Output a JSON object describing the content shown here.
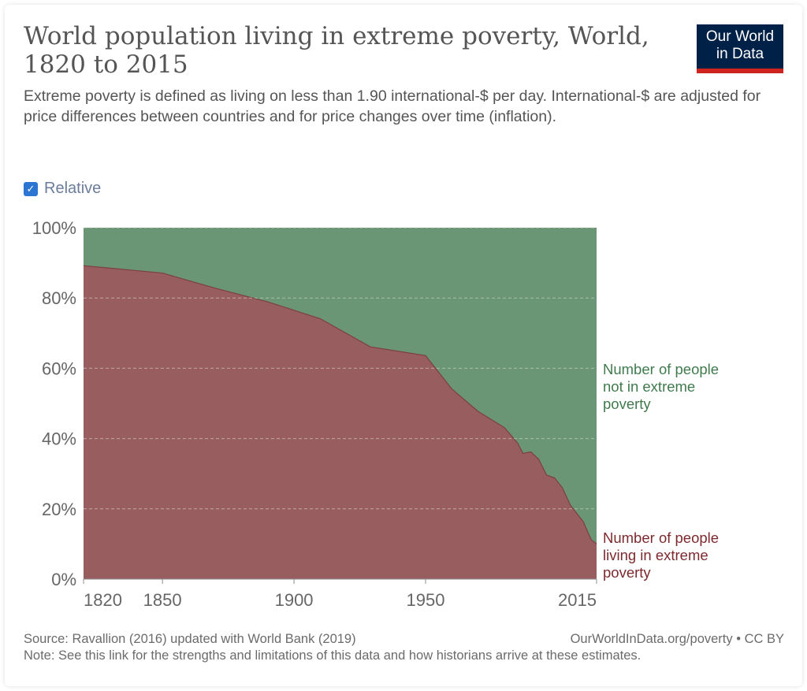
{
  "title": "World population living in extreme poverty, World, 1820 to 2015",
  "subtitle": "Extreme poverty is defined as living on less than 1.90 international-$ per day. International-$ are adjusted for price differences between countries and for price changes over time (inflation).",
  "logo": {
    "line1": "Our World",
    "line2": "in Data",
    "bg_color": "#002147",
    "accent_color": "#ce261e"
  },
  "relative_toggle": {
    "label": "Relative",
    "checked": true
  },
  "footer": {
    "source": "Source: Ravallion (2016) updated with World Bank (2019)",
    "link": "OurWorldInData.org/poverty • CC BY",
    "note": "Note: See this link for the strengths and limitations of this data and how historians arrive at these estimates."
  },
  "chart_data": {
    "type": "area",
    "stacked": true,
    "relative": true,
    "x": [
      1820,
      1850,
      1870,
      1890,
      1910,
      1929,
      1950,
      1960,
      1970,
      1980,
      1985,
      1987,
      1990,
      1993,
      1996,
      1999,
      2002,
      2005,
      2008,
      2010,
      2012,
      2013,
      2015
    ],
    "series": [
      {
        "name": "Number of people living in extreme poverty",
        "label_lines": [
          "Number of people",
          "living in extreme",
          "poverty"
        ],
        "color": "#985e5f",
        "values": [
          89.2,
          87.1,
          82.8,
          78.9,
          74.1,
          66.1,
          63.6,
          54.1,
          47.7,
          43.1,
          38.7,
          35.8,
          36.2,
          34.1,
          29.6,
          28.8,
          26.0,
          21.1,
          18.2,
          16.3,
          12.8,
          11.2,
          10.0
        ]
      },
      {
        "name": "Number of people not in extreme poverty",
        "label_lines": [
          "Number of people",
          "not in extreme",
          "poverty"
        ],
        "color": "#6a9676",
        "values": [
          10.8,
          12.9,
          17.2,
          21.1,
          25.9,
          33.9,
          36.4,
          45.9,
          52.3,
          56.9,
          61.3,
          64.2,
          63.8,
          65.9,
          70.4,
          71.2,
          74.0,
          78.9,
          81.8,
          83.7,
          87.2,
          88.8,
          90.0
        ]
      }
    ],
    "xlim": [
      1820,
      2015
    ],
    "ylim": [
      0,
      100
    ],
    "y_ticks": [
      "0%",
      "20%",
      "40%",
      "60%",
      "80%",
      "100%"
    ],
    "x_ticks": [
      "1820",
      "1850",
      "1900",
      "1950",
      "2015"
    ],
    "grid": true,
    "legend": "right-inline"
  }
}
